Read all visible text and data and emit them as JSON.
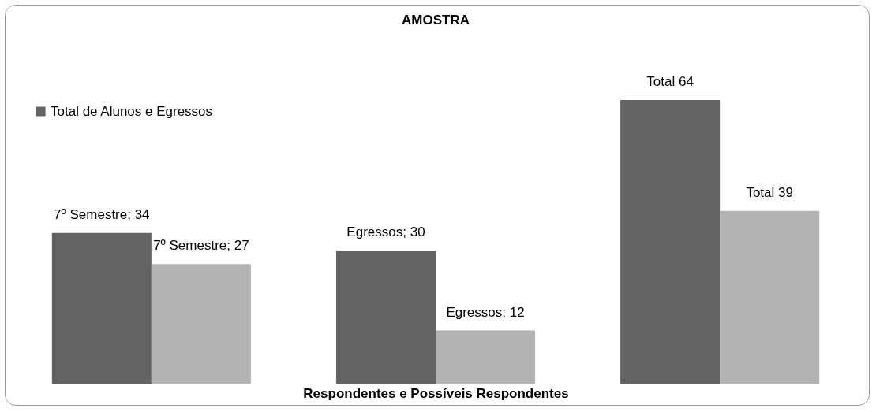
{
  "chart_data": {
    "type": "bar",
    "title": "AMOSTRA",
    "xlabel": "Respondentes e Possíveis  Respondentes",
    "categories": [
      null,
      null,
      null
    ],
    "series": [
      {
        "name": "Total de Alunos e Egressos",
        "color": "#636363",
        "values": [
          34,
          30,
          64
        ],
        "value_labels": [
          "7º Semestre; 34",
          "Egressos; 30",
          "Total 64"
        ]
      },
      {
        "color": "#b3b3b3",
        "values": [
          27,
          12,
          39
        ],
        "value_labels": [
          "7º Semestre; 27",
          "Egressos; 12",
          "Total 39"
        ]
      }
    ],
    "legend": "top left"
  }
}
